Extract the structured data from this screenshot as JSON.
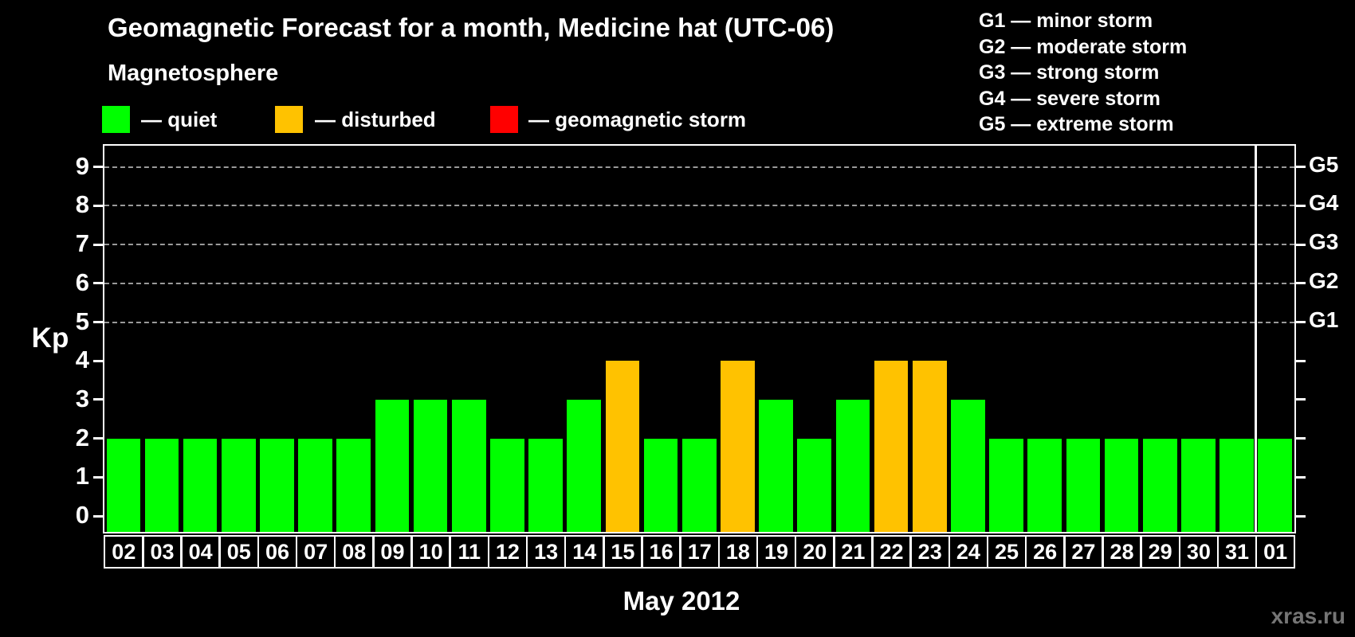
{
  "page": {
    "title": "Geomagnetic Forecast for a month, Medicine hat (UTC-06)",
    "subtitle": "Magnetosphere",
    "watermark": "xras.ru"
  },
  "legend": {
    "items": [
      {
        "name": "quiet",
        "label": "— quiet",
        "color": "#00ff00"
      },
      {
        "name": "disturbed",
        "label": "— disturbed",
        "color": "#ffc200"
      },
      {
        "name": "storm",
        "label": "— geomagnetic storm",
        "color": "#ff0000"
      }
    ]
  },
  "g_legend": {
    "lines": [
      "G1 — minor storm",
      "G2 — moderate storm",
      "G3 — strong storm",
      "G4 — severe storm",
      "G5 — extreme storm"
    ]
  },
  "chart_data": {
    "type": "bar",
    "title": "Geomagnetic Forecast for a month, Medicine hat (UTC-06)",
    "xlabel": "May 2012",
    "ylabel": "Kp",
    "ylim": [
      0,
      9
    ],
    "yticks": [
      0,
      1,
      2,
      3,
      4,
      5,
      6,
      7,
      8,
      9
    ],
    "grid": "dashed horizontal lines at storm levels",
    "gridlines_at_kp": [
      5,
      6,
      7,
      8,
      9
    ],
    "right_axis": {
      "labels": [
        "G1",
        "G2",
        "G3",
        "G4",
        "G5"
      ],
      "at_kp": [
        5,
        6,
        7,
        8,
        9
      ]
    },
    "legend_position": "top-left",
    "categories": [
      "02",
      "03",
      "04",
      "05",
      "06",
      "07",
      "08",
      "09",
      "10",
      "11",
      "12",
      "13",
      "14",
      "15",
      "16",
      "17",
      "18",
      "19",
      "20",
      "21",
      "22",
      "23",
      "24",
      "25",
      "26",
      "27",
      "28",
      "29",
      "30",
      "31",
      "01"
    ],
    "values": [
      2,
      2,
      2,
      2,
      2,
      2,
      2,
      3,
      3,
      3,
      2,
      2,
      3,
      4,
      2,
      2,
      4,
      3,
      2,
      3,
      4,
      4,
      3,
      2,
      2,
      2,
      2,
      2,
      2,
      2,
      2
    ],
    "statuses": [
      "quiet",
      "quiet",
      "quiet",
      "quiet",
      "quiet",
      "quiet",
      "quiet",
      "quiet",
      "quiet",
      "quiet",
      "quiet",
      "quiet",
      "quiet",
      "disturbed",
      "quiet",
      "quiet",
      "disturbed",
      "quiet",
      "quiet",
      "quiet",
      "disturbed",
      "disturbed",
      "quiet",
      "quiet",
      "quiet",
      "quiet",
      "quiet",
      "quiet",
      "quiet",
      "quiet",
      "quiet"
    ],
    "colors": {
      "quiet": "#00ff00",
      "disturbed": "#ffc200",
      "storm": "#ff0000"
    },
    "next_month_separator_index": 30
  }
}
